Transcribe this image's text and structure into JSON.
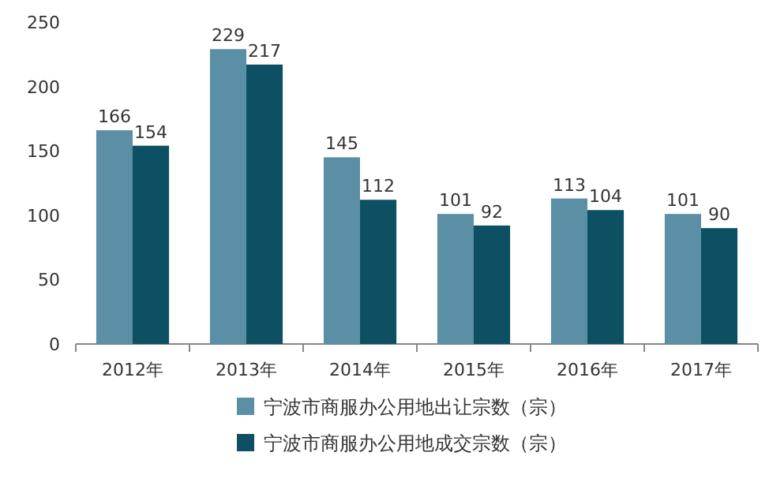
{
  "chart_data": {
    "type": "bar",
    "categories": [
      "2012年",
      "2013年",
      "2014年",
      "2015年",
      "2016年",
      "2017年"
    ],
    "series": [
      {
        "name": "宁波市商服办公用地出让宗数（宗）",
        "color": "#5b8fa6",
        "values": [
          166,
          229,
          145,
          101,
          113,
          101
        ]
      },
      {
        "name": "宁波市商服办公用地成交宗数（宗）",
        "color": "#0d4f63",
        "values": [
          154,
          217,
          112,
          92,
          104,
          90
        ]
      }
    ],
    "ylim": [
      0,
      250
    ],
    "yticks": [
      0,
      50,
      100,
      150,
      200,
      250
    ],
    "data_labels": true,
    "legend": "bottom",
    "grid": false
  }
}
